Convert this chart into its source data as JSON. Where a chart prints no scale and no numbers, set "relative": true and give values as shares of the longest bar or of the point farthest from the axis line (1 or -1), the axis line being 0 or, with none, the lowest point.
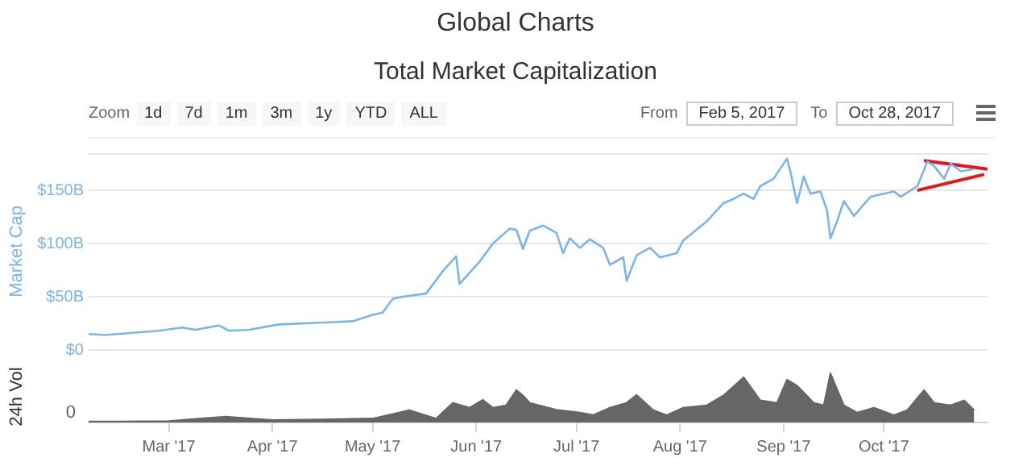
{
  "chart_data": [
    {
      "type": "line",
      "title": "Global Charts",
      "subtitle": "Total Market Capitalization",
      "ylabel": "Market Cap",
      "annotations": [
        "Zoom",
        "1d",
        "7d",
        "1m",
        "3m",
        "1y",
        "YTD",
        "ALL",
        "From",
        "Feb 5, 2017",
        "To",
        "Oct 28, 2017"
      ],
      "xlim": [
        "2017-02-05",
        "2017-11-01"
      ],
      "ylim": [
        0,
        185
      ],
      "yticks": [
        {
          "value": 0,
          "label": "$0"
        },
        {
          "value": 50,
          "label": "$50B"
        },
        {
          "value": 100,
          "label": "$100B"
        },
        {
          "value": 150,
          "label": "$150B"
        }
      ],
      "grid": "y",
      "tick_labels": "y",
      "marker": "none",
      "series": [
        {
          "color": "#7cb5ec",
          "x": [
            "2017-02-05",
            "2017-02-10",
            "2017-02-26",
            "2017-03-05",
            "2017-03-09",
            "2017-03-16",
            "2017-03-19",
            "2017-03-25",
            "2017-04-03",
            "2017-04-18",
            "2017-04-25",
            "2017-05-01",
            "2017-05-04",
            "2017-05-07",
            "2017-05-10",
            "2017-05-17",
            "2017-05-22",
            "2017-05-26",
            "2017-05-27",
            "2017-06-02",
            "2017-06-06",
            "2017-06-11",
            "2017-06-13",
            "2017-06-15",
            "2017-06-17",
            "2017-06-21",
            "2017-06-25",
            "2017-06-27",
            "2017-06-29",
            "2017-07-02",
            "2017-07-05",
            "2017-07-09",
            "2017-07-11",
            "2017-07-15",
            "2017-07-16",
            "2017-07-19",
            "2017-07-23",
            "2017-07-26",
            "2017-07-31",
            "2017-08-02",
            "2017-08-09",
            "2017-08-14",
            "2017-08-17",
            "2017-08-20",
            "2017-08-23",
            "2017-08-25",
            "2017-08-29",
            "2017-09-02",
            "2017-09-03",
            "2017-09-05",
            "2017-09-07",
            "2017-09-09",
            "2017-09-12",
            "2017-09-14",
            "2017-09-15",
            "2017-09-17",
            "2017-09-19",
            "2017-09-22",
            "2017-09-27",
            "2017-10-04",
            "2017-10-06",
            "2017-10-11",
            "2017-10-14",
            "2017-10-16",
            "2017-10-19",
            "2017-10-21",
            "2017-10-24",
            "2017-10-28"
          ],
          "values": [
            15,
            14,
            18,
            21,
            19,
            23,
            18,
            19,
            24,
            26,
            27,
            33,
            35,
            48,
            50,
            53,
            74,
            88,
            62,
            83,
            100,
            114,
            113,
            95,
            112,
            117,
            110,
            91,
            105,
            96,
            104,
            96,
            80,
            87,
            65,
            89,
            96,
            87,
            91,
            103,
            121,
            138,
            142,
            147,
            142,
            154,
            161,
            180,
            168,
            138,
            163,
            147,
            149,
            131,
            105,
            121,
            140,
            126,
            144,
            149,
            144,
            154,
            177,
            173,
            161,
            175,
            168,
            170
          ]
        },
        {
          "color": "#e8141b",
          "x": [
            "2017-10-13",
            "2017-11-01"
          ],
          "values": [
            178,
            170
          ]
        },
        {
          "color": "#e8141b",
          "x": [
            "2017-10-11",
            "2017-10-31"
          ],
          "values": [
            150,
            165
          ]
        }
      ]
    },
    {
      "type": "area",
      "ylabel": "24h Vol",
      "relative": true,
      "tick_labels": "x",
      "annotations": [
        "0"
      ],
      "xlim": [
        "2017-02-05",
        "2017-11-01"
      ],
      "xticks": [
        {
          "value": "2017-03-01",
          "label": "Mar '17"
        },
        {
          "value": "2017-04-01",
          "label": "Apr '17"
        },
        {
          "value": "2017-05-01",
          "label": "May '17"
        },
        {
          "value": "2017-06-01",
          "label": "Jun '17"
        },
        {
          "value": "2017-07-01",
          "label": "Jul '17"
        },
        {
          "value": "2017-08-01",
          "label": "Aug '17"
        },
        {
          "value": "2017-09-01",
          "label": "Sep '17"
        },
        {
          "value": "2017-10-01",
          "label": "Oct '17"
        }
      ],
      "series": [
        {
          "color": "#666666",
          "x": [
            "2017-02-05",
            "2017-02-15",
            "2017-03-01",
            "2017-03-18",
            "2017-04-01",
            "2017-04-15",
            "2017-05-01",
            "2017-05-12",
            "2017-05-20",
            "2017-05-25",
            "2017-05-30",
            "2017-06-03",
            "2017-06-06",
            "2017-06-10",
            "2017-06-13",
            "2017-06-15",
            "2017-06-17",
            "2017-06-25",
            "2017-07-02",
            "2017-07-06",
            "2017-07-11",
            "2017-07-16",
            "2017-07-19",
            "2017-07-24",
            "2017-07-28",
            "2017-08-02",
            "2017-08-09",
            "2017-08-14",
            "2017-08-20",
            "2017-08-25",
            "2017-08-30",
            "2017-09-02",
            "2017-09-05",
            "2017-09-10",
            "2017-09-13",
            "2017-09-15",
            "2017-09-19",
            "2017-09-23",
            "2017-09-28",
            "2017-10-04",
            "2017-10-08",
            "2017-10-13",
            "2017-10-16",
            "2017-10-21",
            "2017-10-25",
            "2017-10-28"
          ],
          "values": [
            0.02,
            0.02,
            0.03,
            0.12,
            0.05,
            0.06,
            0.08,
            0.25,
            0.08,
            0.4,
            0.3,
            0.46,
            0.3,
            0.35,
            0.66,
            0.55,
            0.4,
            0.26,
            0.2,
            0.15,
            0.3,
            0.4,
            0.56,
            0.25,
            0.15,
            0.3,
            0.35,
            0.55,
            0.92,
            0.45,
            0.4,
            0.87,
            0.75,
            0.4,
            0.35,
            1,
            0.35,
            0.2,
            0.3,
            0.15,
            0.25,
            0.66,
            0.4,
            0.35,
            0.45,
            0.25
          ]
        }
      ]
    }
  ]
}
